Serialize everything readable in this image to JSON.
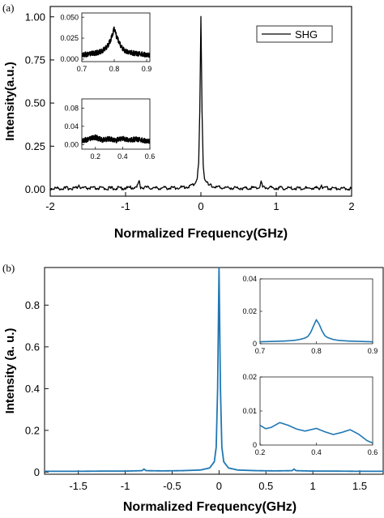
{
  "panel_a_label": "(a)",
  "panel_b_label": "(b)",
  "chart_data": [
    {
      "id": "a",
      "type": "line",
      "xlabel": "Normalized Frequency(GHz)",
      "ylabel": "Intensity(a.u.)",
      "xlim": [
        -2,
        2
      ],
      "ylim": [
        -0.04,
        1.06
      ],
      "xticks": [
        -2,
        -1,
        0,
        1,
        2
      ],
      "xtick_labels": [
        "-2",
        "-1",
        "0",
        "1",
        "2"
      ],
      "yticks": [
        0,
        0.25,
        0.5,
        0.75,
        1.0
      ],
      "ytick_labels": [
        "0.00",
        "0.25",
        "0.50",
        "0.75",
        "1.00"
      ],
      "color": "#000000",
      "legend": {
        "entries": [
          "SHG"
        ],
        "position": "top-right"
      },
      "series": [
        {
          "name": "SHG",
          "x": [
            -2.0,
            -1.8,
            -1.65,
            -1.62,
            -1.6,
            -1.4,
            -1.2,
            -1.0,
            -0.85,
            -0.82,
            -0.8,
            -0.6,
            -0.4,
            -0.2,
            -0.1,
            -0.05,
            -0.03,
            -0.015,
            0.0,
            0.015,
            0.03,
            0.05,
            0.1,
            0.2,
            0.4,
            0.6,
            0.78,
            0.8,
            0.82,
            1.0,
            1.2,
            1.4,
            1.58,
            1.6,
            1.62,
            1.8,
            2.0
          ],
          "y": [
            0.005,
            0.006,
            0.008,
            0.025,
            0.007,
            0.006,
            0.006,
            0.007,
            0.012,
            0.05,
            0.012,
            0.007,
            0.008,
            0.012,
            0.025,
            0.06,
            0.15,
            0.45,
            1.0,
            0.45,
            0.15,
            0.06,
            0.025,
            0.012,
            0.008,
            0.007,
            0.012,
            0.045,
            0.012,
            0.007,
            0.006,
            0.006,
            0.007,
            0.025,
            0.008,
            0.006,
            0.005
          ]
        }
      ],
      "insets": [
        {
          "id": "a-top",
          "type": "line",
          "xlim": [
            0.7,
            0.91
          ],
          "ylim": [
            -0.003,
            0.055
          ],
          "xticks": [
            0.7,
            0.8,
            0.9
          ],
          "xtick_labels": [
            "0.7",
            "0.8",
            "0.9"
          ],
          "yticks": [
            0,
            0.025,
            0.05
          ],
          "ytick_labels": [
            "0.000",
            "0.025",
            "0.050"
          ],
          "x": [
            0.7,
            0.72,
            0.74,
            0.76,
            0.77,
            0.78,
            0.79,
            0.795,
            0.8,
            0.805,
            0.81,
            0.82,
            0.83,
            0.84,
            0.86,
            0.88,
            0.91
          ],
          "y": [
            0.005,
            0.006,
            0.007,
            0.009,
            0.012,
            0.016,
            0.024,
            0.03,
            0.037,
            0.03,
            0.024,
            0.016,
            0.011,
            0.009,
            0.007,
            0.006,
            0.005
          ]
        },
        {
          "id": "a-bottom",
          "type": "line",
          "xlim": [
            0.1,
            0.6
          ],
          "ylim": [
            -0.01,
            0.1
          ],
          "xticks": [
            0.2,
            0.4,
            0.6
          ],
          "xtick_labels": [
            "0.2",
            "0.4",
            "0.6"
          ],
          "yticks": [
            0,
            0.04,
            0.08
          ],
          "ytick_labels": [
            "0.00",
            "0.04",
            "0.08"
          ],
          "x": [
            0.1,
            0.15,
            0.2,
            0.25,
            0.3,
            0.35,
            0.4,
            0.45,
            0.5,
            0.55,
            0.6
          ],
          "y": [
            0.008,
            0.012,
            0.016,
            0.01,
            0.013,
            0.009,
            0.014,
            0.01,
            0.012,
            0.009,
            0.008
          ]
        }
      ]
    },
    {
      "id": "b",
      "type": "line",
      "xlabel": "Normalized Frequency(GHz)",
      "ylabel": "Intensity (a. u.)",
      "xlim": [
        -1.86,
        1.75
      ],
      "ylim": [
        -0.01,
        0.98
      ],
      "xticks": [
        -1.5,
        -1,
        -0.5,
        0,
        0.5,
        1,
        1.5
      ],
      "xtick_labels": [
        "-1.5",
        "-1",
        "-0.5",
        "0",
        "0.5",
        "1",
        "1.5"
      ],
      "yticks": [
        0,
        0.2,
        0.4,
        0.6,
        0.8
      ],
      "ytick_labels": [
        "0",
        "0.2",
        "0.4",
        "0.6",
        "0.8"
      ],
      "color": "#1f77b4",
      "series": [
        {
          "x": [
            -1.86,
            -1.5,
            -1.2,
            -1.0,
            -0.82,
            -0.8,
            -0.78,
            -0.6,
            -0.4,
            -0.2,
            -0.1,
            -0.05,
            -0.03,
            -0.015,
            0.0,
            0.015,
            0.03,
            0.05,
            0.1,
            0.2,
            0.4,
            0.6,
            0.78,
            0.8,
            0.82,
            1.0,
            1.2,
            1.5,
            1.75
          ],
          "y": [
            0.004,
            0.004,
            0.005,
            0.005,
            0.007,
            0.015,
            0.007,
            0.006,
            0.007,
            0.01,
            0.02,
            0.05,
            0.12,
            0.4,
            0.98,
            0.4,
            0.12,
            0.05,
            0.02,
            0.01,
            0.007,
            0.006,
            0.007,
            0.015,
            0.007,
            0.005,
            0.005,
            0.004,
            0.004
          ]
        }
      ],
      "insets": [
        {
          "id": "b-top",
          "type": "line",
          "xlim": [
            0.7,
            0.9
          ],
          "ylim": [
            0,
            0.04
          ],
          "xticks": [
            0.7,
            0.8,
            0.9
          ],
          "xtick_labels": [
            "0.7",
            "0.8",
            "0.9"
          ],
          "yticks": [
            0,
            0.02,
            0.04
          ],
          "ytick_labels": [
            "0",
            "0.02",
            "0.04"
          ],
          "x": [
            0.7,
            0.72,
            0.74,
            0.76,
            0.77,
            0.78,
            0.785,
            0.79,
            0.795,
            0.8,
            0.805,
            0.81,
            0.815,
            0.82,
            0.83,
            0.84,
            0.86,
            0.88,
            0.9
          ],
          "y": [
            0.0012,
            0.0014,
            0.0016,
            0.002,
            0.0026,
            0.0035,
            0.0045,
            0.007,
            0.011,
            0.0148,
            0.012,
            0.008,
            0.005,
            0.0038,
            0.0026,
            0.002,
            0.0016,
            0.0014,
            0.0012
          ]
        },
        {
          "id": "b-bottom",
          "type": "line",
          "xlim": [
            0.2,
            0.6
          ],
          "ylim": [
            0,
            0.02
          ],
          "xticks": [
            0.2,
            0.4,
            0.6
          ],
          "xtick_labels": [
            "0.2",
            "0.4",
            "0.6"
          ],
          "yticks": [
            0,
            0.01,
            0.02
          ],
          "ytick_labels": [
            "0",
            "0.01",
            "0.02"
          ],
          "x": [
            0.2,
            0.22,
            0.24,
            0.27,
            0.3,
            0.33,
            0.36,
            0.4,
            0.43,
            0.46,
            0.49,
            0.52,
            0.55,
            0.58,
            0.6
          ],
          "y": [
            0.0058,
            0.0048,
            0.0052,
            0.0066,
            0.0058,
            0.0047,
            0.0041,
            0.0049,
            0.0039,
            0.0031,
            0.0037,
            0.0045,
            0.0032,
            0.0013,
            0.0006
          ]
        }
      ]
    }
  ]
}
